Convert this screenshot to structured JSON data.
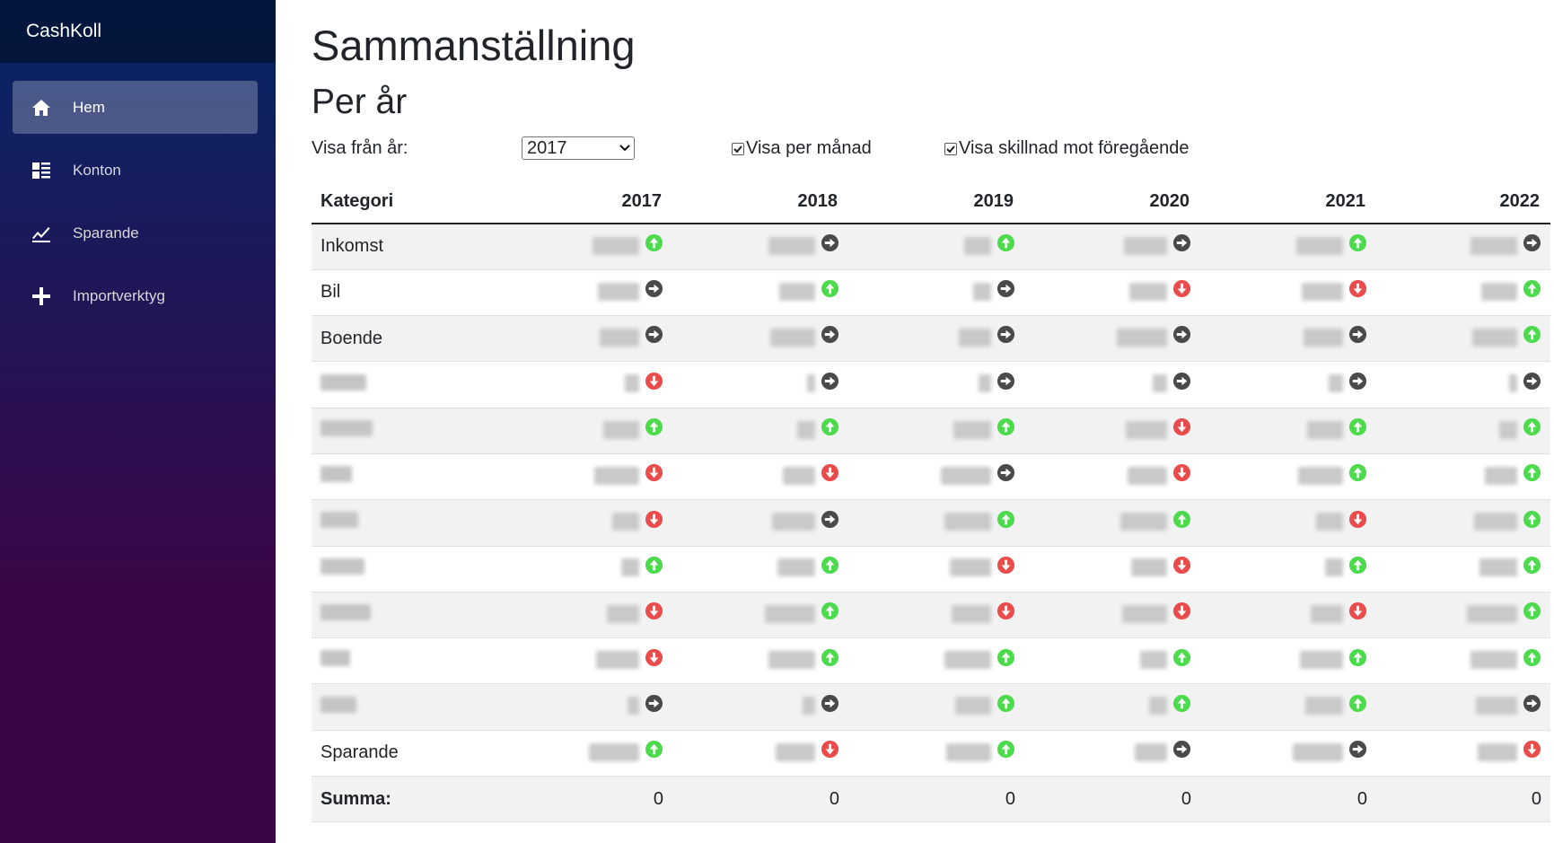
{
  "app": {
    "brand": "CashKoll"
  },
  "nav": [
    {
      "label": "Hem",
      "icon": "home-icon",
      "active": true
    },
    {
      "label": "Konton",
      "icon": "list-icon",
      "active": false
    },
    {
      "label": "Sparande",
      "icon": "chart-line-icon",
      "active": false
    },
    {
      "label": "Importverktyg",
      "icon": "plus-icon",
      "active": false
    }
  ],
  "page": {
    "title": "Sammanställning",
    "subtitle": "Per år"
  },
  "controls": {
    "from_year_label": "Visa från år:",
    "from_year_value": "2017",
    "per_month_label": "Visa per månad",
    "per_month_checked": true,
    "diff_label": "Visa skillnad mot föregående",
    "diff_checked": true
  },
  "table": {
    "category_header": "Kategori",
    "years": [
      "2017",
      "2018",
      "2019",
      "2020",
      "2021",
      "2022"
    ],
    "rows": [
      {
        "category": "Inkomst",
        "trends": [
          "up",
          "same",
          "up",
          "same",
          "up",
          "same"
        ]
      },
      {
        "category": "Bil",
        "trends": [
          "same",
          "up",
          "same",
          "down",
          "down",
          "up"
        ]
      },
      {
        "category": "Boende",
        "trends": [
          "same",
          "same",
          "same",
          "same",
          "same",
          "up"
        ]
      },
      {
        "category": "",
        "trends": [
          "down",
          "same",
          "same",
          "same",
          "same",
          "same"
        ]
      },
      {
        "category": "",
        "trends": [
          "up",
          "up",
          "up",
          "down",
          "up",
          "up"
        ]
      },
      {
        "category": "",
        "trends": [
          "down",
          "down",
          "same",
          "down",
          "up",
          "up"
        ]
      },
      {
        "category": "",
        "trends": [
          "down",
          "same",
          "up",
          "up",
          "down",
          "up"
        ]
      },
      {
        "category": "",
        "trends": [
          "up",
          "up",
          "down",
          "down",
          "up",
          "up"
        ]
      },
      {
        "category": "",
        "trends": [
          "down",
          "up",
          "down",
          "down",
          "down",
          "up"
        ]
      },
      {
        "category": "",
        "trends": [
          "down",
          "up",
          "up",
          "up",
          "up",
          "up"
        ]
      },
      {
        "category": "",
        "trends": [
          "same",
          "same",
          "up",
          "up",
          "up",
          "same"
        ]
      },
      {
        "category": "Sparande",
        "trends": [
          "up",
          "down",
          "up",
          "same",
          "same",
          "down"
        ]
      }
    ],
    "sum_label": "Summa:",
    "sums": [
      "0",
      "0",
      "0",
      "0",
      "0",
      "0"
    ]
  },
  "colors": {
    "up": "#4cdb4c",
    "down": "#ea4b4b",
    "same": "#4a4a4a"
  }
}
